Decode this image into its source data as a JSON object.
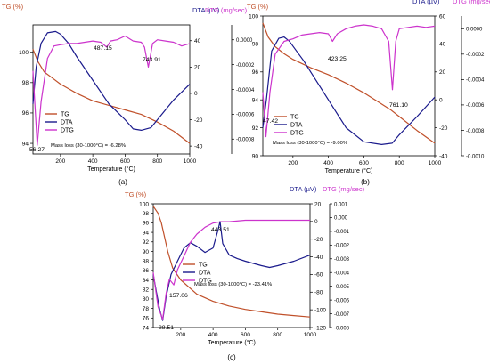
{
  "colors": {
    "tg": "#c0502a",
    "dta": "#1a1a8c",
    "dtg": "#cc33cc",
    "axis": "#000000"
  },
  "chart_data": [
    {
      "id": "a",
      "type": "line",
      "caption": "(a)",
      "xlabel": "Temperature (°C)",
      "xticks": [
        "200",
        "400",
        "600",
        "800",
        "1000"
      ],
      "xlim": [
        30,
        1000
      ],
      "left_axis": {
        "label": "TG (%)",
        "ylim": [
          93.3,
          101.8
        ],
        "ticks": [
          "94",
          "96",
          "98",
          "100"
        ]
      },
      "mid_axis": {
        "label": "DTA (µV)",
        "ylim": [
          -46,
          52
        ],
        "ticks": [
          "-40",
          "-20",
          "0",
          "20",
          "40"
        ]
      },
      "right_axis": {
        "label": "DTG (mg/sec)",
        "ylim": [
          -0.00092,
          0.00012
        ],
        "ticks": [
          "0.0000",
          "-0.0002",
          "-0.0004",
          "-0.0006",
          "-0.0008"
        ]
      },
      "legend": [
        "TG",
        "DTA",
        "DTG"
      ],
      "note": "Mass loss (30-1000°C) = -6.28%",
      "annotations": [
        "56.27",
        "487.15",
        "743.91"
      ],
      "series": [
        {
          "name": "TG",
          "axis": "left",
          "x": [
            30,
            60,
            100,
            150,
            200,
            250,
            300,
            400,
            500,
            600,
            700,
            800,
            900,
            1000
          ],
          "y": [
            100.2,
            99.4,
            98.7,
            98.3,
            97.9,
            97.6,
            97.3,
            96.8,
            96.5,
            96.2,
            95.9,
            95.4,
            94.8,
            94.0
          ]
        },
        {
          "name": "DTA",
          "axis": "mid",
          "x": [
            30,
            50,
            80,
            120,
            170,
            200,
            250,
            300,
            400,
            500,
            600,
            650,
            700,
            760,
            800,
            900,
            1000
          ],
          "y": [
            -8,
            20,
            38,
            46,
            47,
            45,
            38,
            28,
            10,
            -8,
            -20,
            -27,
            -28,
            -26,
            -20,
            -5,
            7
          ]
        },
        {
          "name": "DTG",
          "axis": "right",
          "x": [
            30,
            56.27,
            80,
            120,
            160,
            200,
            250,
            300,
            350,
            400,
            450,
            487.15,
            510,
            550,
            600,
            650,
            700,
            720,
            743.91,
            770,
            800,
            850,
            900,
            950,
            1000
          ],
          "y": [
            -0.00025,
            -0.00085,
            -0.0005,
            -0.00015,
            -5e-05,
            -4e-05,
            -3e-05,
            -3e-05,
            -2e-05,
            -1e-05,
            -2e-05,
            -6e-05,
            -1e-05,
            0.0,
            3e-05,
            -1e-05,
            -2e-05,
            -6e-05,
            -0.00022,
            -3e-05,
            0.0,
            -1e-05,
            -2e-05,
            -5e-05,
            -3e-05
          ]
        }
      ]
    },
    {
      "id": "b",
      "type": "line",
      "caption": "(b)",
      "xlabel": "Temperature (°C)",
      "xticks": [
        "200",
        "400",
        "600",
        "800",
        "1000"
      ],
      "xlim": [
        30,
        1000
      ],
      "left_axis": {
        "label": "TG (%)",
        "ylim": [
          90,
          100
        ],
        "ticks": [
          "90",
          "92",
          "94",
          "96",
          "98",
          "100"
        ]
      },
      "mid_axis": {
        "label": "DTA (µV)",
        "ylim": [
          -40,
          60
        ],
        "ticks": [
          "-40",
          "-20",
          "0",
          "20",
          "40",
          "60"
        ]
      },
      "right_axis": {
        "label": "DTG (mg/sec)",
        "ylim": [
          -0.001,
          0.0001
        ],
        "ticks": [
          "0.0000",
          "-0.0002",
          "-0.0004",
          "-0.0006",
          "-0.0008",
          "-0.0010"
        ]
      },
      "legend": [
        "TG",
        "DTA",
        "DTG"
      ],
      "note": "Mass loss (30-1000°C) = -9.00%",
      "annotations": [
        "47.42",
        "423.25",
        "761.10"
      ],
      "series": [
        {
          "name": "TG",
          "axis": "left",
          "x": [
            30,
            60,
            100,
            150,
            200,
            300,
            400,
            500,
            600,
            700,
            750,
            800,
            900,
            1000
          ],
          "y": [
            99.5,
            98.5,
            97.8,
            97.3,
            96.9,
            96.3,
            95.8,
            95.2,
            94.5,
            93.7,
            93.3,
            92.8,
            91.8,
            90.9
          ]
        },
        {
          "name": "DTA",
          "axis": "mid",
          "x": [
            30,
            50,
            80,
            120,
            150,
            180,
            220,
            260,
            300,
            400,
            500,
            600,
            700,
            760,
            800,
            900,
            1000
          ],
          "y": [
            -20,
            0,
            35,
            44,
            45,
            42,
            35,
            28,
            20,
            0,
            -20,
            -30,
            -32,
            -31,
            -25,
            -12,
            2
          ]
        },
        {
          "name": "DTG",
          "axis": "right",
          "x": [
            30,
            47.42,
            70,
            100,
            150,
            200,
            250,
            300,
            350,
            400,
            423.25,
            450,
            500,
            550,
            600,
            650,
            700,
            740,
            761.1,
            780,
            800,
            850,
            900,
            950,
            1000
          ],
          "y": [
            -0.0005,
            -0.00085,
            -0.0005,
            -0.0002,
            -0.0001,
            -8e-05,
            -5e-05,
            -4e-05,
            -3e-05,
            -4e-05,
            -0.0001,
            -4e-05,
            0.0,
            2e-05,
            3e-05,
            2e-05,
            0.0,
            -0.0001,
            -0.00048,
            -0.0001,
            0.0,
            1e-05,
            2e-05,
            1e-05,
            2e-05
          ]
        }
      ]
    },
    {
      "id": "c",
      "type": "line",
      "caption": "(c)",
      "xlabel": "Temperature (°C)",
      "xticks": [
        "200",
        "400",
        "600",
        "800",
        "1000"
      ],
      "xlim": [
        30,
        1000
      ],
      "left_axis": {
        "label": "TG (%)",
        "ylim": [
          74,
          100
        ],
        "ticks": [
          "74",
          "76",
          "78",
          "80",
          "82",
          "84",
          "86",
          "88",
          "90",
          "92",
          "94",
          "96",
          "98",
          "100"
        ]
      },
      "mid_axis": {
        "label": "DTA (µV)",
        "ylim": [
          -120,
          20
        ],
        "ticks": [
          "-120",
          "-100",
          "-80",
          "-60",
          "-40",
          "-20",
          "0",
          "20"
        ]
      },
      "right_axis": {
        "label": "DTG (mg/sec)",
        "ylim": [
          -0.008,
          0.001
        ],
        "ticks": [
          "0.001",
          "0.000",
          "-0.001",
          "-0.002",
          "-0.003",
          "-0.004",
          "-0.005",
          "-0.006",
          "-0.007",
          "-0.008"
        ]
      },
      "legend": [
        "TG",
        "DTA",
        "DTG"
      ],
      "note": "Mass loss (30-1000°C) = -23.41%",
      "annotations": [
        "88.51",
        "157.06",
        "443.51"
      ],
      "series": [
        {
          "name": "TG",
          "axis": "left",
          "x": [
            30,
            60,
            80,
            100,
            120,
            150,
            200,
            250,
            300,
            400,
            500,
            600,
            700,
            800,
            900,
            1000
          ],
          "y": [
            99.5,
            98,
            96,
            93,
            90,
            86.5,
            84,
            82.5,
            81,
            79.5,
            78.5,
            77.8,
            77.3,
            76.8,
            76.5,
            76.2
          ]
        },
        {
          "name": "DTA",
          "axis": "mid",
          "x": [
            30,
            50,
            70,
            88.51,
            110,
            140,
            180,
            220,
            260,
            300,
            350,
            400,
            430,
            443.51,
            460,
            500,
            550,
            600,
            700,
            750,
            800,
            900,
            1000
          ],
          "y": [
            -60,
            -80,
            -100,
            -112,
            -85,
            -60,
            -45,
            -30,
            -24,
            -28,
            -35,
            -30,
            -10,
            0,
            -25,
            -38,
            -42,
            -45,
            -50,
            -52,
            -50,
            -45,
            -38
          ]
        },
        {
          "name": "DTG",
          "axis": "right",
          "x": [
            30,
            60,
            88.51,
            110,
            130,
            157.06,
            180,
            220,
            260,
            300,
            350,
            400,
            450,
            500,
            600,
            700,
            800,
            900,
            1000
          ],
          "y": [
            -0.004,
            -0.0065,
            -0.0074,
            -0.0055,
            -0.0045,
            -0.0049,
            -0.0038,
            -0.0028,
            -0.0018,
            -0.0012,
            -0.0007,
            -0.0004,
            -0.0003,
            -0.0003,
            -0.0002,
            -0.0002,
            -0.0002,
            -0.0002,
            -0.0002
          ]
        }
      ]
    }
  ]
}
